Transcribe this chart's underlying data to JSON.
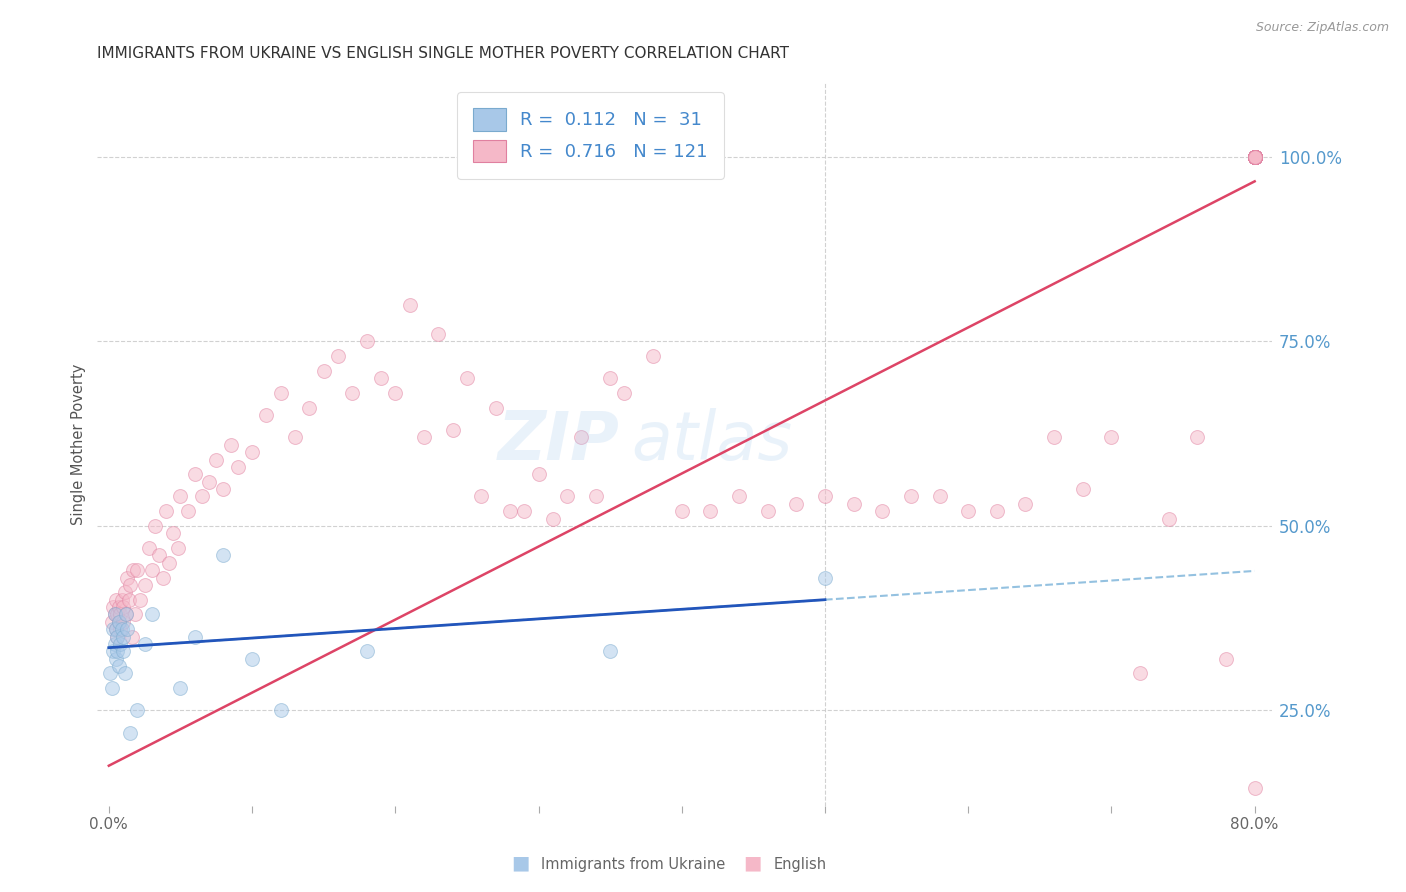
{
  "title": "IMMIGRANTS FROM UKRAINE VS ENGLISH SINGLE MOTHER POVERTY CORRELATION CHART",
  "source": "Source: ZipAtlas.com",
  "legend_ukraine_label": "Immigrants from Ukraine",
  "legend_english_label": "English",
  "ylabel": "Single Mother Poverty",
  "xlim_low": -0.008,
  "xlim_high": 0.812,
  "ylim_low": 0.12,
  "ylim_high": 1.1,
  "right_yticks": [
    0.25,
    0.5,
    0.75,
    1.0
  ],
  "right_yticklabels": [
    "25.0%",
    "50.0%",
    "75.0%",
    "100.0%"
  ],
  "ukraine_fill_color": "#A8C8E8",
  "ukraine_edge_color": "#7AAACE",
  "english_fill_color": "#F5B8C8",
  "english_edge_color": "#E080A0",
  "ukraine_line_color": "#2255BB",
  "english_line_color": "#DD4466",
  "ukraine_dashed_color": "#88BBDD",
  "bg_color": "#FFFFFF",
  "grid_color": "#CCCCCC",
  "text_color_blue": "#4488CC",
  "title_color": "#333333",
  "right_label_color": "#5599CC",
  "marker_size": 100,
  "marker_alpha": 0.5,
  "R_ukraine": 0.112,
  "N_ukraine": 31,
  "R_english": 0.716,
  "N_english": 121,
  "watermark_zip": "ZIP",
  "watermark_atlas": "atlas",
  "ukraine_x": [
    0.001,
    0.002,
    0.003,
    0.003,
    0.004,
    0.004,
    0.005,
    0.005,
    0.006,
    0.006,
    0.007,
    0.007,
    0.008,
    0.009,
    0.01,
    0.01,
    0.011,
    0.012,
    0.013,
    0.015,
    0.02,
    0.025,
    0.03,
    0.05,
    0.06,
    0.08,
    0.1,
    0.12,
    0.18,
    0.35,
    0.5
  ],
  "ukraine_y": [
    0.3,
    0.28,
    0.33,
    0.36,
    0.34,
    0.38,
    0.32,
    0.36,
    0.35,
    0.33,
    0.37,
    0.31,
    0.34,
    0.36,
    0.33,
    0.35,
    0.3,
    0.38,
    0.36,
    0.22,
    0.25,
    0.34,
    0.38,
    0.28,
    0.35,
    0.46,
    0.32,
    0.25,
    0.33,
    0.33,
    0.43
  ],
  "english_x": [
    0.002,
    0.003,
    0.004,
    0.005,
    0.005,
    0.006,
    0.006,
    0.007,
    0.007,
    0.008,
    0.008,
    0.009,
    0.01,
    0.01,
    0.011,
    0.012,
    0.013,
    0.014,
    0.015,
    0.016,
    0.017,
    0.018,
    0.02,
    0.022,
    0.025,
    0.028,
    0.03,
    0.032,
    0.035,
    0.038,
    0.04,
    0.042,
    0.045,
    0.048,
    0.05,
    0.055,
    0.06,
    0.065,
    0.07,
    0.075,
    0.08,
    0.085,
    0.09,
    0.1,
    0.11,
    0.12,
    0.13,
    0.14,
    0.15,
    0.16,
    0.17,
    0.18,
    0.19,
    0.2,
    0.21,
    0.22,
    0.23,
    0.24,
    0.25,
    0.26,
    0.27,
    0.28,
    0.29,
    0.3,
    0.31,
    0.32,
    0.33,
    0.34,
    0.35,
    0.36,
    0.38,
    0.4,
    0.42,
    0.44,
    0.46,
    0.48,
    0.5,
    0.52,
    0.54,
    0.56,
    0.58,
    0.6,
    0.62,
    0.64,
    0.66,
    0.68,
    0.7,
    0.72,
    0.74,
    0.76,
    0.78,
    0.8,
    0.8,
    0.8,
    0.8,
    0.8,
    0.8,
    0.8,
    0.8,
    0.8,
    0.8,
    0.8,
    0.8,
    0.8,
    0.8,
    0.8,
    0.8,
    0.8,
    0.8,
    0.8,
    0.8,
    0.8,
    0.8,
    0.8,
    0.8,
    0.8,
    0.8,
    0.8,
    0.8,
    0.8,
    0.8
  ],
  "english_y": [
    0.37,
    0.39,
    0.38,
    0.36,
    0.4,
    0.38,
    0.35,
    0.39,
    0.37,
    0.36,
    0.38,
    0.4,
    0.37,
    0.39,
    0.41,
    0.38,
    0.43,
    0.4,
    0.42,
    0.35,
    0.44,
    0.38,
    0.44,
    0.4,
    0.42,
    0.47,
    0.44,
    0.5,
    0.46,
    0.43,
    0.52,
    0.45,
    0.49,
    0.47,
    0.54,
    0.52,
    0.57,
    0.54,
    0.56,
    0.59,
    0.55,
    0.61,
    0.58,
    0.6,
    0.65,
    0.68,
    0.62,
    0.66,
    0.71,
    0.73,
    0.68,
    0.75,
    0.7,
    0.68,
    0.8,
    0.62,
    0.76,
    0.63,
    0.7,
    0.54,
    0.66,
    0.52,
    0.52,
    0.57,
    0.51,
    0.54,
    0.62,
    0.54,
    0.7,
    0.68,
    0.73,
    0.52,
    0.52,
    0.54,
    0.52,
    0.53,
    0.54,
    0.53,
    0.52,
    0.54,
    0.54,
    0.52,
    0.52,
    0.53,
    0.62,
    0.55,
    0.62,
    0.3,
    0.51,
    0.62,
    0.32,
    1.0,
    1.0,
    1.0,
    1.0,
    1.0,
    1.0,
    1.0,
    1.0,
    1.0,
    1.0,
    1.0,
    1.0,
    1.0,
    1.0,
    1.0,
    1.0,
    1.0,
    1.0,
    1.0,
    1.0,
    1.0,
    1.0,
    1.0,
    1.0,
    1.0,
    1.0,
    1.0,
    1.0,
    1.0,
    0.145
  ]
}
